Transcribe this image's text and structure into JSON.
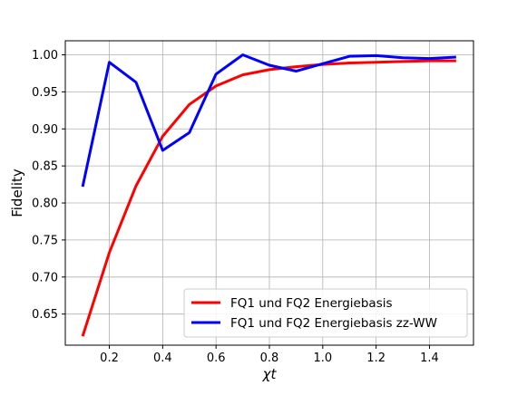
{
  "chart_data": {
    "type": "line",
    "xlabel": "χt",
    "ylabel": "Fidelity",
    "xlim": [
      0.035,
      1.565
    ],
    "ylim": [
      0.608,
      1.019
    ],
    "xticks": [
      0.2,
      0.4,
      0.6,
      0.8,
      1.0,
      1.2,
      1.4
    ],
    "xtick_labels": [
      "0.2",
      "0.4",
      "0.6",
      "0.8",
      "1.0",
      "1.2",
      "1.4"
    ],
    "yticks": [
      0.65,
      0.7,
      0.75,
      0.8,
      0.85,
      0.9,
      0.95,
      1.0
    ],
    "ytick_labels": [
      "0.65",
      "0.70",
      "0.75",
      "0.80",
      "0.85",
      "0.90",
      "0.95",
      "1.00"
    ],
    "grid": true,
    "legend_position": "lower-right",
    "x": [
      0.1,
      0.2,
      0.3,
      0.4,
      0.5,
      0.6,
      0.7,
      0.8,
      0.9,
      1.0,
      1.1,
      1.2,
      1.3,
      1.4,
      1.5
    ],
    "series": [
      {
        "name": "FQ1 und FQ2 Energiebasis",
        "color": "#ff0000",
        "values": [
          0.62,
          0.733,
          0.823,
          0.89,
          0.933,
          0.958,
          0.973,
          0.98,
          0.984,
          0.987,
          0.989,
          0.99,
          0.991,
          0.992,
          0.992
        ]
      },
      {
        "name": "FQ1 und FQ2 Energiebasis zz-WW",
        "color": "#0000ff",
        "values": [
          0.822,
          0.99,
          0.963,
          0.871,
          0.895,
          0.974,
          1.0,
          0.986,
          0.978,
          0.988,
          0.998,
          0.999,
          0.996,
          0.995,
          0.997
        ]
      }
    ]
  }
}
